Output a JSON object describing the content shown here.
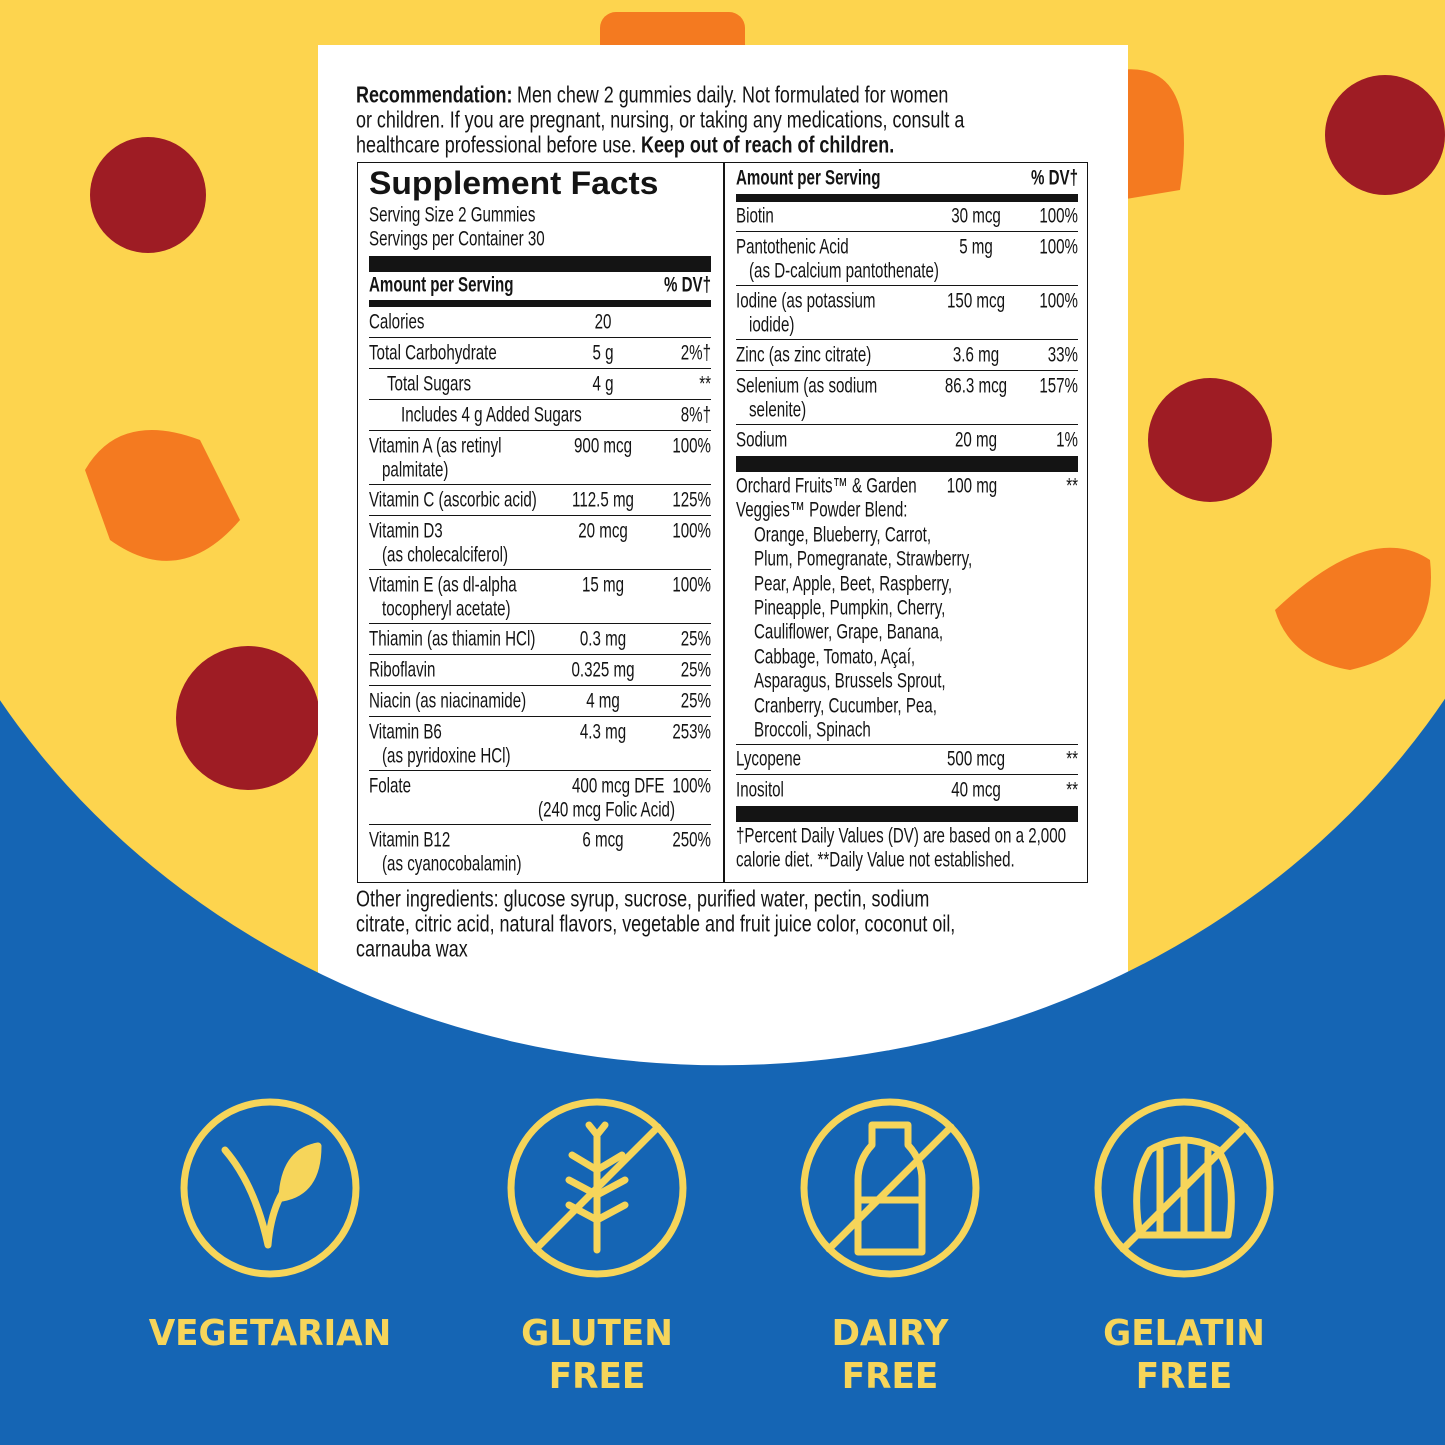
{
  "recommendation": {
    "label": "Recommendation:",
    "lines": [
      "Men chew 2 gummies daily. Not formulated for women",
      "or children. If you are pregnant, nursing, or taking any medications, consult a",
      "healthcare professional before use."
    ],
    "warning": "Keep out of reach of children."
  },
  "facts": {
    "title": "Supplement Facts",
    "serving_size": "Serving Size 2 Gummies",
    "servings": "Servings per Container 30",
    "header": {
      "amount": "Amount per Serving",
      "dv": "% DV†"
    },
    "left_rows": [
      {
        "name": [
          "Calories"
        ],
        "amount": "20"
      },
      {
        "name": [
          "Total Carbohydrate"
        ],
        "amount": "5 g",
        "dv": "2%†"
      },
      {
        "name": [
          "Total Sugars"
        ],
        "amount": "4 g",
        "dv": "**"
      },
      {
        "name": [
          "Includes 4 g Added Sugars"
        ],
        "dv": "8%†"
      },
      {
        "name": [
          "Vitamin A (as retinyl",
          "palmitate)"
        ],
        "amount": "900 mcg",
        "dv": "100%"
      },
      {
        "name": [
          "Vitamin C (ascorbic acid)"
        ],
        "amount": "112.5 mg",
        "dv": "125%"
      },
      {
        "name": [
          "Vitamin D3",
          "(as cholecalciferol)"
        ],
        "amount": "20 mcg",
        "dv": "100%"
      },
      {
        "name": [
          "Vitamin E (as dl-alpha",
          "tocopheryl acetate)"
        ],
        "amount": "15 mg",
        "dv": "100%"
      },
      {
        "name": [
          "Thiamin (as thiamin HCl)"
        ],
        "amount": "0.3 mg",
        "dv": "25%"
      },
      {
        "name": [
          "Riboflavin"
        ],
        "amount": "0.325 mg",
        "dv": "25%"
      },
      {
        "name": [
          "Niacin (as niacinamide)"
        ],
        "amount": "4 mg",
        "dv": "25%"
      },
      {
        "name": [
          "Vitamin B6",
          "(as pyridoxine HCl)"
        ],
        "amount": "4.3 mg",
        "dv": "253%"
      },
      {
        "name": [
          "Folate"
        ],
        "amount": "400 mcg DFE",
        "amount_note": "(240 mcg Folic Acid)",
        "dv": "100%"
      },
      {
        "name": [
          "Vitamin B12",
          "(as cyanocobalamin)"
        ],
        "amount": "6 mcg",
        "dv": "250%"
      }
    ],
    "right_rows": [
      {
        "name": [
          "Biotin"
        ],
        "amount": "30 mcg",
        "dv": "100%"
      },
      {
        "name": [
          "Pantothenic Acid",
          "(as D-calcium pantothenate)"
        ],
        "amount": "5 mg",
        "dv": "100%"
      },
      {
        "name": [
          "Iodine (as potassium",
          "iodide)"
        ],
        "amount": "150 mcg",
        "dv": "100%"
      },
      {
        "name": [
          "Zinc (as zinc citrate)"
        ],
        "amount": "3.6 mg",
        "dv": "33%"
      },
      {
        "name": [
          "Selenium (as sodium",
          "selenite)"
        ],
        "amount": "86.3 mcg",
        "dv": "157%"
      },
      {
        "name": [
          "Sodium"
        ],
        "amount": "20 mg",
        "dv": "1%"
      }
    ],
    "blend": {
      "name": [
        "Orchard Fruits™ & Garden",
        "Veggies™ Powder Blend:"
      ],
      "amount": "100 mg",
      "dv": "**",
      "ingredients": [
        "Orange, Blueberry, Carrot,",
        "Plum, Pomegranate, Strawberry,",
        "Pear, Apple, Beet, Raspberry,",
        "Pineapple, Pumpkin, Cherry,",
        "Cauliflower, Grape, Banana,",
        "Cabbage, Tomato, Açaí,",
        "Asparagus, Brussels Sprout,",
        "Cranberry, Cucumber, Pea,",
        "Broccoli, Spinach"
      ]
    },
    "right_rows_lower": [
      {
        "name": [
          "Lycopene"
        ],
        "amount": "500 mcg",
        "dv": "**"
      },
      {
        "name": [
          "Inositol"
        ],
        "amount": "40 mcg",
        "dv": "**"
      }
    ],
    "footnote": [
      "†Percent Daily Values (DV) are based on a 2,000",
      "calorie diet. **Daily Value not established."
    ]
  },
  "other_ingredients": [
    "Other ingredients: glucose syrup, sucrose, purified water, pectin, sodium",
    "citrate, citric acid, natural flavors, vegetable and fruit juice color, coconut oil,",
    "carnauba wax"
  ],
  "badges": [
    [
      "VEGETARIAN"
    ],
    [
      "GLUTEN",
      "FREE"
    ],
    [
      "DAIRY",
      "FREE"
    ],
    [
      "GELATIN",
      "FREE"
    ]
  ]
}
